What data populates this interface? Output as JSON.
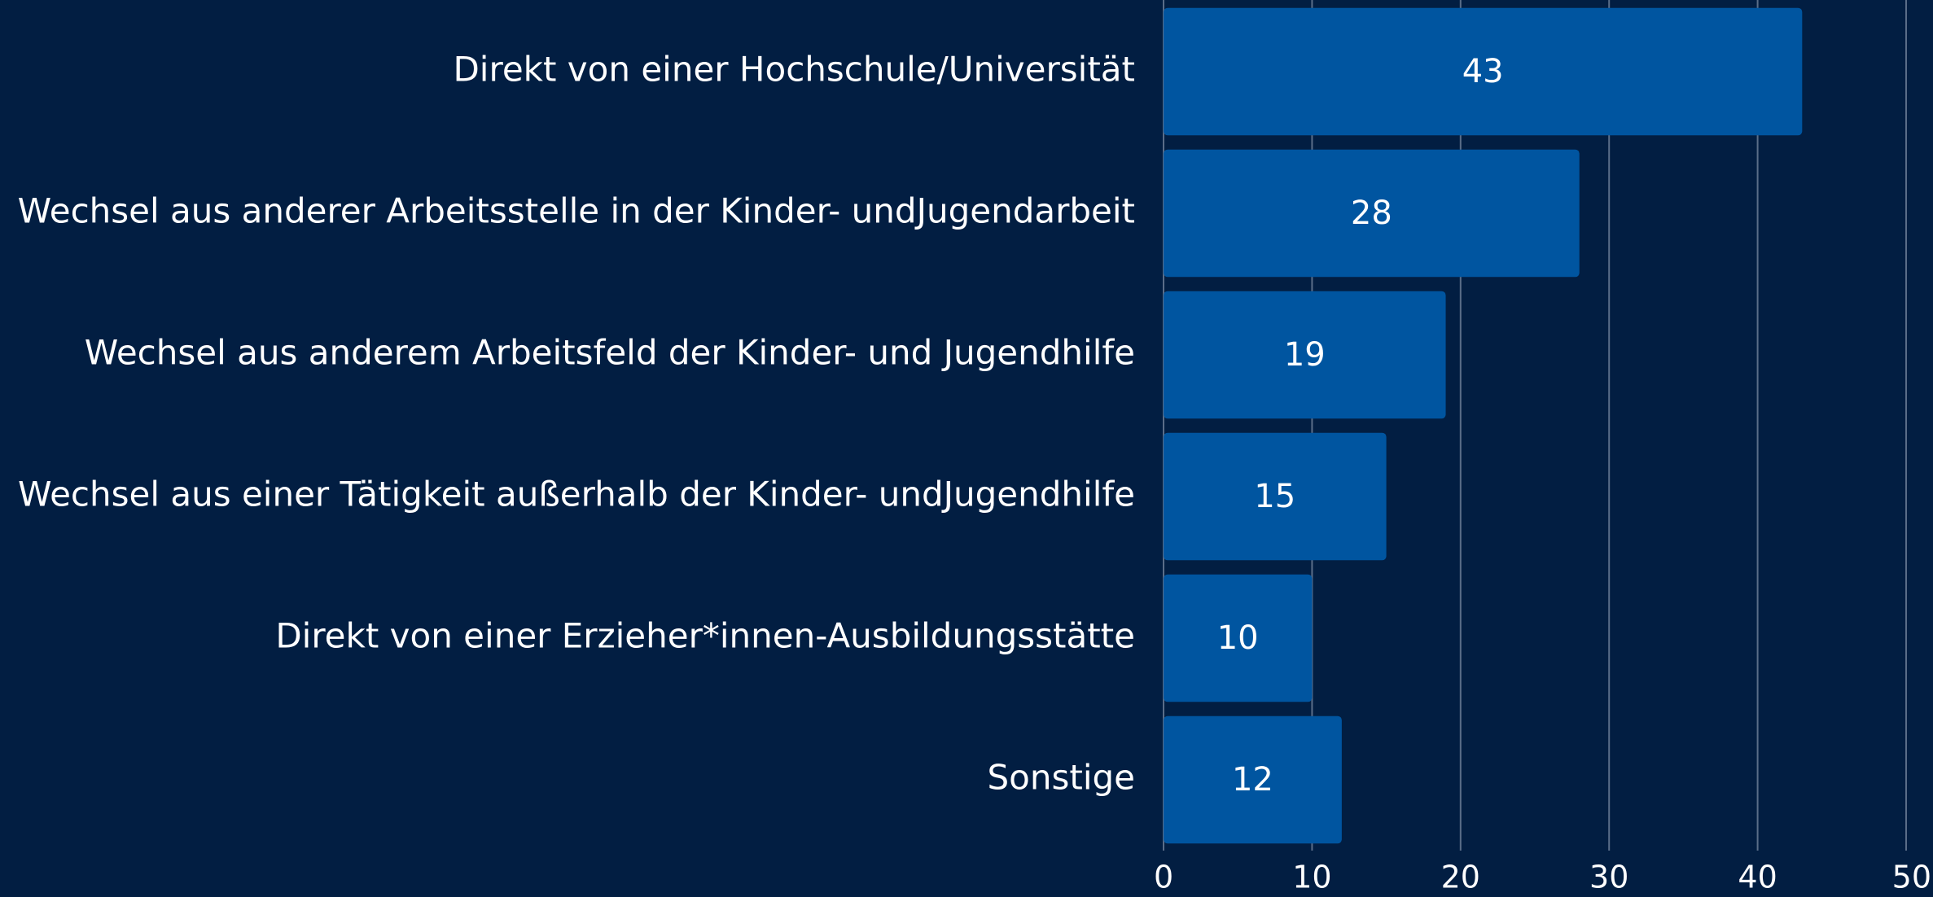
{
  "chart_data": {
    "type": "bar",
    "orientation": "horizontal",
    "categories": [
      "Direkt von einer Hochschule/Universität",
      "Wechsel aus anderer Arbeitsstelle in der Kinder- undJugendarbeit",
      "Wechsel aus anderem Arbeitsfeld der Kinder- und Jugendhilfe",
      "Wechsel aus einer Tätigkeit außerhalb der Kinder- undJugendhilfe",
      "Direkt von einer Erzieher*innen-Ausbildungsstätte",
      "Sonstige"
    ],
    "values": [
      43,
      28,
      19,
      15,
      10,
      12
    ],
    "color": "#0055a0",
    "xlim": [
      0,
      50
    ],
    "xticks": [
      0,
      10,
      20,
      30,
      40,
      50
    ],
    "grid": true
  }
}
